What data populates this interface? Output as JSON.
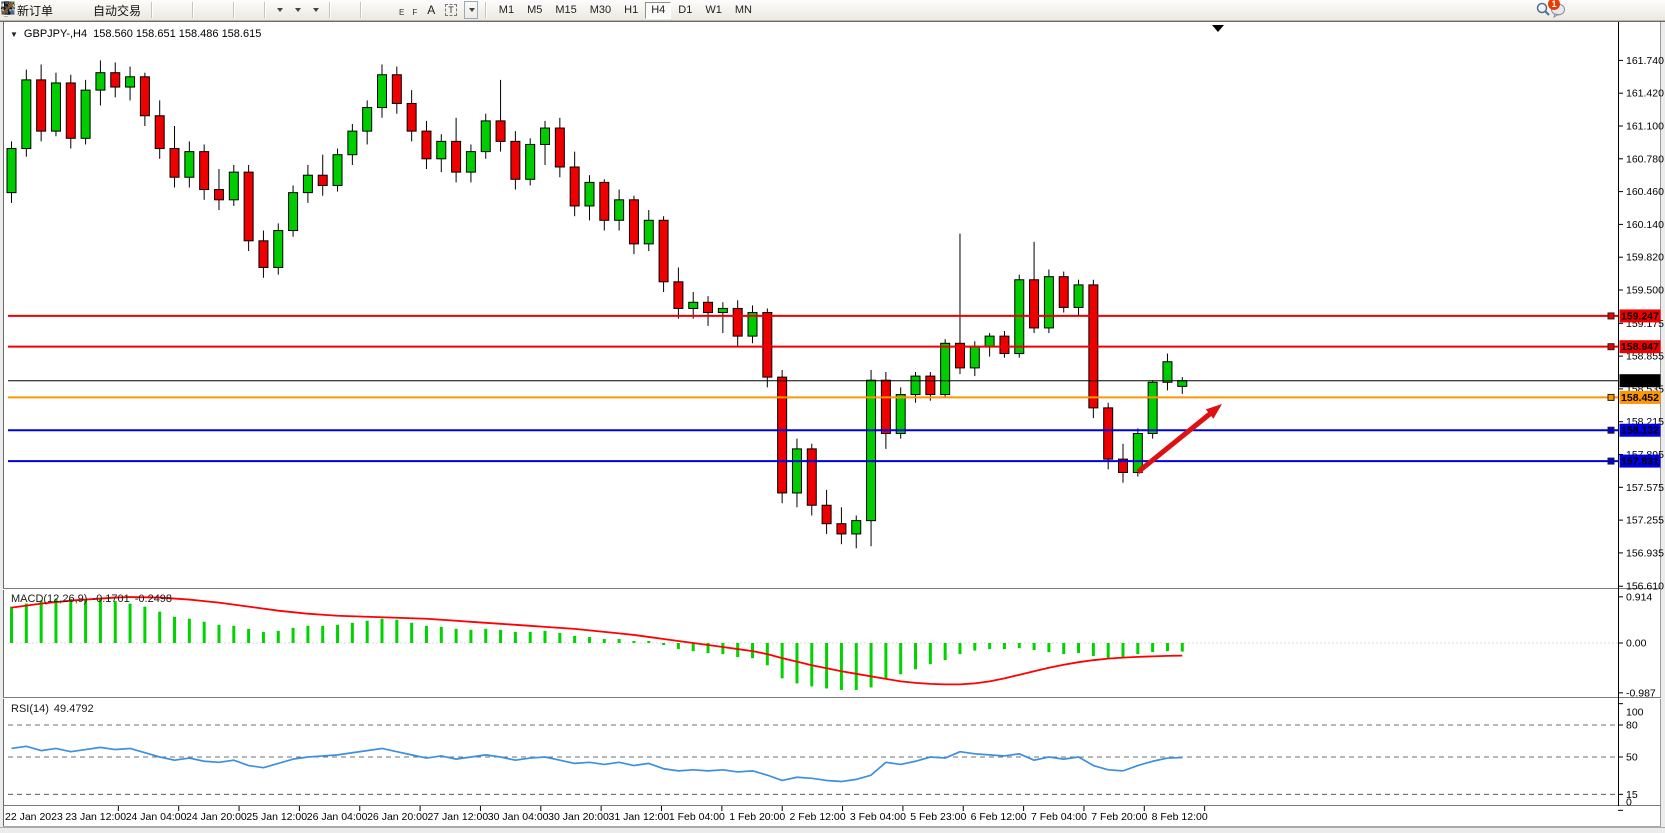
{
  "toolbar": {
    "new_order": "新订单",
    "auto_trading": "自动交易",
    "timeframes": [
      "M1",
      "M5",
      "M15",
      "M30",
      "H1",
      "H4",
      "D1",
      "W1",
      "MN"
    ],
    "active_timeframe": "H4",
    "notification_badge": "1",
    "glyphs": {
      "channel": "E",
      "fibo": "F",
      "text": "A",
      "label": "T"
    }
  },
  "chart": {
    "symbol_period": "GBPJPY-,H4",
    "ohlc_string": "158.560 158.651 158.486 158.615"
  },
  "indicators": {
    "macd": {
      "name": "MACD(12,26,9)",
      "value_main": "-0.1701",
      "value_signal": "-0.2498"
    },
    "rsi": {
      "name": "RSI(14)",
      "value": "49.4792"
    }
  },
  "chart_data": {
    "type": "candlestick",
    "symbol": "GBPJPY-",
    "timeframe": "H4",
    "price_axis": {
      "tick_labels": [
        "161.740",
        "161.420",
        "161.100",
        "160.780",
        "160.460",
        "160.140",
        "159.820",
        "159.500",
        "159.175",
        "158.855",
        "158.535",
        "158.215",
        "157.895",
        "157.575",
        "157.255",
        "156.935",
        "156.610"
      ],
      "tick_values": [
        161.74,
        161.42,
        161.1,
        160.78,
        160.46,
        160.14,
        159.82,
        159.5,
        159.175,
        158.855,
        158.535,
        158.215,
        157.895,
        157.575,
        157.255,
        156.935,
        156.61
      ],
      "min": 156.61,
      "max": 161.9
    },
    "time_axis": {
      "labels": [
        "22 Jan 2023",
        "23 Jan 12:00",
        "24 Jan 04:00",
        "24 Jan 20:00",
        "25 Jan 12:00",
        "26 Jan 04:00",
        "26 Jan 20:00",
        "27 Jan 12:00",
        "30 Jan 04:00",
        "30 Jan 20:00",
        "31 Jan 12:00",
        "1 Feb 04:00",
        "1 Feb 20:00",
        "2 Feb 12:00",
        "3 Feb 04:00",
        "5 Feb 23:00",
        "6 Feb 12:00",
        "7 Feb 04:00",
        "7 Feb 20:00",
        "8 Feb 12:00"
      ],
      "bars_per_label": 4
    },
    "candles": {
      "open": [
        160.45,
        160.88,
        161.55,
        161.05,
        161.52,
        160.98,
        161.45,
        161.62,
        161.48,
        161.58,
        161.2,
        160.88,
        160.6,
        160.85,
        160.48,
        160.38,
        160.65,
        159.98,
        159.72,
        160.08,
        160.45,
        160.62,
        160.52,
        160.82,
        161.05,
        161.28,
        161.6,
        161.32,
        161.05,
        160.78,
        160.95,
        160.65,
        160.85,
        161.15,
        160.95,
        160.58,
        160.92,
        161.08,
        160.7,
        160.32,
        160.55,
        160.18,
        160.38,
        159.95,
        160.18,
        159.58,
        159.32,
        159.38,
        159.28,
        159.32,
        159.05,
        159.28,
        158.65,
        157.52,
        157.95,
        157.4,
        157.22,
        157.12,
        157.25,
        158.62,
        158.1,
        158.48,
        158.66,
        158.48,
        158.98,
        158.74,
        158.95,
        159.05,
        158.88,
        159.6,
        159.13,
        159.63,
        159.33,
        159.55,
        158.35,
        157.85,
        157.72,
        158.1,
        158.6,
        158.56
      ],
      "high": [
        160.95,
        161.65,
        161.7,
        161.62,
        161.6,
        161.55,
        161.74,
        161.72,
        161.68,
        161.62,
        161.35,
        161.1,
        160.95,
        160.92,
        160.68,
        160.72,
        160.72,
        160.08,
        160.15,
        160.52,
        160.72,
        160.82,
        160.88,
        161.12,
        161.35,
        161.7,
        161.68,
        161.45,
        161.15,
        161.02,
        161.18,
        160.92,
        161.22,
        161.55,
        161.05,
        160.98,
        161.15,
        161.18,
        160.85,
        160.62,
        160.58,
        160.48,
        160.42,
        160.28,
        160.22,
        159.72,
        159.48,
        159.44,
        159.38,
        159.4,
        159.35,
        159.32,
        158.72,
        158.05,
        158.0,
        157.55,
        157.38,
        157.3,
        158.72,
        158.7,
        158.55,
        158.7,
        158.7,
        159.02,
        160.05,
        159.0,
        159.08,
        159.1,
        159.65,
        159.97,
        159.7,
        159.68,
        159.6,
        159.6,
        158.4,
        158.0,
        158.15,
        158.62,
        158.88,
        158.651
      ],
      "low": [
        160.35,
        160.8,
        160.95,
        161.0,
        160.88,
        160.92,
        161.3,
        161.38,
        161.35,
        161.1,
        160.78,
        160.5,
        160.5,
        160.38,
        160.28,
        160.32,
        159.88,
        159.62,
        159.65,
        160.02,
        160.35,
        160.42,
        160.46,
        160.72,
        160.92,
        161.18,
        161.22,
        160.95,
        160.68,
        160.65,
        160.55,
        160.55,
        160.78,
        160.85,
        160.48,
        160.52,
        160.72,
        160.6,
        160.22,
        160.18,
        160.08,
        160.08,
        159.85,
        159.88,
        159.48,
        159.22,
        159.22,
        159.15,
        159.08,
        158.95,
        158.98,
        158.55,
        157.42,
        157.38,
        157.3,
        157.12,
        157.02,
        156.98,
        157.0,
        157.95,
        158.05,
        158.4,
        158.42,
        158.45,
        158.68,
        158.66,
        158.85,
        158.84,
        158.84,
        159.08,
        159.08,
        159.28,
        159.25,
        158.25,
        157.75,
        157.62,
        157.68,
        158.05,
        158.52,
        158.486
      ],
      "close": [
        160.88,
        161.55,
        161.05,
        161.52,
        160.98,
        161.45,
        161.62,
        161.48,
        161.58,
        161.2,
        160.88,
        160.6,
        160.85,
        160.48,
        160.38,
        160.65,
        159.98,
        159.72,
        160.08,
        160.45,
        160.62,
        160.52,
        160.82,
        161.05,
        161.28,
        161.6,
        161.32,
        161.05,
        160.78,
        160.95,
        160.65,
        160.85,
        161.15,
        160.95,
        160.58,
        160.92,
        161.08,
        160.7,
        160.32,
        160.55,
        160.18,
        160.38,
        159.95,
        160.18,
        159.58,
        159.32,
        159.38,
        159.28,
        159.32,
        159.05,
        159.28,
        158.65,
        157.52,
        157.95,
        157.4,
        157.22,
        157.12,
        157.25,
        158.62,
        158.1,
        158.48,
        158.66,
        158.48,
        158.98,
        158.74,
        158.95,
        159.05,
        158.88,
        159.6,
        159.13,
        159.63,
        159.33,
        159.55,
        158.35,
        157.85,
        157.72,
        158.1,
        158.6,
        158.8,
        158.615
      ]
    },
    "horizontal_lines": [
      {
        "price": 159.247,
        "label": "159.247",
        "color": "#ee0000",
        "width": 2
      },
      {
        "price": 158.947,
        "label": "158.947",
        "color": "#ee0000",
        "width": 2
      },
      {
        "price": 158.452,
        "label": "158.452",
        "color": "#ff9500",
        "width": 2
      },
      {
        "price": 158.132,
        "label": "158.132",
        "color": "#0000e0",
        "width": 2
      },
      {
        "price": 157.831,
        "label": "157.831",
        "color": "#0000e0",
        "width": 2
      }
    ],
    "bid_line": {
      "price": 158.615,
      "label": "158.615",
      "color": "#000000"
    },
    "macd": {
      "histogram": [
        0.72,
        0.78,
        0.84,
        0.88,
        0.87,
        0.84,
        0.86,
        0.83,
        0.78,
        0.72,
        0.62,
        0.52,
        0.48,
        0.42,
        0.36,
        0.34,
        0.28,
        0.22,
        0.24,
        0.3,
        0.34,
        0.34,
        0.36,
        0.4,
        0.44,
        0.48,
        0.46,
        0.4,
        0.34,
        0.32,
        0.28,
        0.26,
        0.28,
        0.26,
        0.22,
        0.22,
        0.24,
        0.2,
        0.14,
        0.12,
        0.08,
        0.08,
        0.04,
        0.04,
        -0.04,
        -0.12,
        -0.16,
        -0.2,
        -0.22,
        -0.28,
        -0.3,
        -0.44,
        -0.7,
        -0.8,
        -0.86,
        -0.9,
        -0.93,
        -0.93,
        -0.88,
        -0.72,
        -0.62,
        -0.52,
        -0.42,
        -0.34,
        -0.22,
        -0.15,
        -0.12,
        -0.12,
        -0.1,
        -0.14,
        -0.18,
        -0.22,
        -0.2,
        -0.26,
        -0.3,
        -0.28,
        -0.22,
        -0.18,
        -0.16,
        -0.17
      ],
      "signal": [
        0.7,
        0.74,
        0.78,
        0.81,
        0.84,
        0.86,
        0.88,
        0.9,
        0.91,
        0.905,
        0.9,
        0.88,
        0.86,
        0.83,
        0.8,
        0.76,
        0.72,
        0.68,
        0.64,
        0.61,
        0.58,
        0.56,
        0.54,
        0.53,
        0.52,
        0.51,
        0.5,
        0.49,
        0.48,
        0.46,
        0.44,
        0.42,
        0.4,
        0.38,
        0.36,
        0.34,
        0.32,
        0.3,
        0.28,
        0.25,
        0.22,
        0.19,
        0.16,
        0.12,
        0.08,
        0.04,
        0.0,
        -0.04,
        -0.08,
        -0.12,
        -0.16,
        -0.22,
        -0.3,
        -0.37,
        -0.44,
        -0.5,
        -0.56,
        -0.61,
        -0.66,
        -0.71,
        -0.76,
        -0.79,
        -0.81,
        -0.82,
        -0.82,
        -0.8,
        -0.76,
        -0.7,
        -0.63,
        -0.56,
        -0.49,
        -0.43,
        -0.38,
        -0.34,
        -0.31,
        -0.29,
        -0.275,
        -0.265,
        -0.255,
        -0.25
      ],
      "tick_labels": [
        "0.914",
        "0.00",
        "-0.987"
      ],
      "tick_values": [
        0.914,
        0.0,
        -0.987
      ],
      "histogram_color": "#00d300",
      "signal_color": "#ff0000"
    },
    "rsi": {
      "series": [
        58,
        60,
        56,
        58,
        55,
        57,
        59,
        57,
        58,
        54,
        50,
        47,
        49,
        46,
        45,
        47,
        42,
        40,
        44,
        48,
        50,
        51,
        52,
        54,
        56,
        58,
        55,
        52,
        49,
        51,
        48,
        50,
        52,
        50,
        47,
        49,
        50,
        47,
        44,
        45,
        43,
        45,
        42,
        44,
        39,
        37,
        38,
        37,
        38,
        36,
        37,
        33,
        28,
        31,
        30,
        28,
        27,
        29,
        33,
        45,
        43,
        46,
        50,
        49,
        55,
        53,
        52,
        51,
        53,
        47,
        50,
        48,
        50,
        42,
        38,
        37,
        42,
        46,
        49,
        49.48
      ],
      "tick_labels": [
        "100",
        "80",
        "50",
        "15",
        "0"
      ],
      "tick_values": [
        100,
        80,
        50,
        15,
        0
      ],
      "dashed_levels": [
        80,
        50,
        15
      ],
      "line_color": "#3d8fe0"
    },
    "annotations": {
      "arrow": {
        "from": [
          1138,
          472
        ],
        "to": [
          1222,
          404
        ],
        "color": "#dd1111"
      },
      "shift_marker_x": 1218
    },
    "colors": {
      "bull": "#00cd00",
      "bear": "#ee0000",
      "wick": "#000000",
      "background": "#ffffff"
    }
  }
}
